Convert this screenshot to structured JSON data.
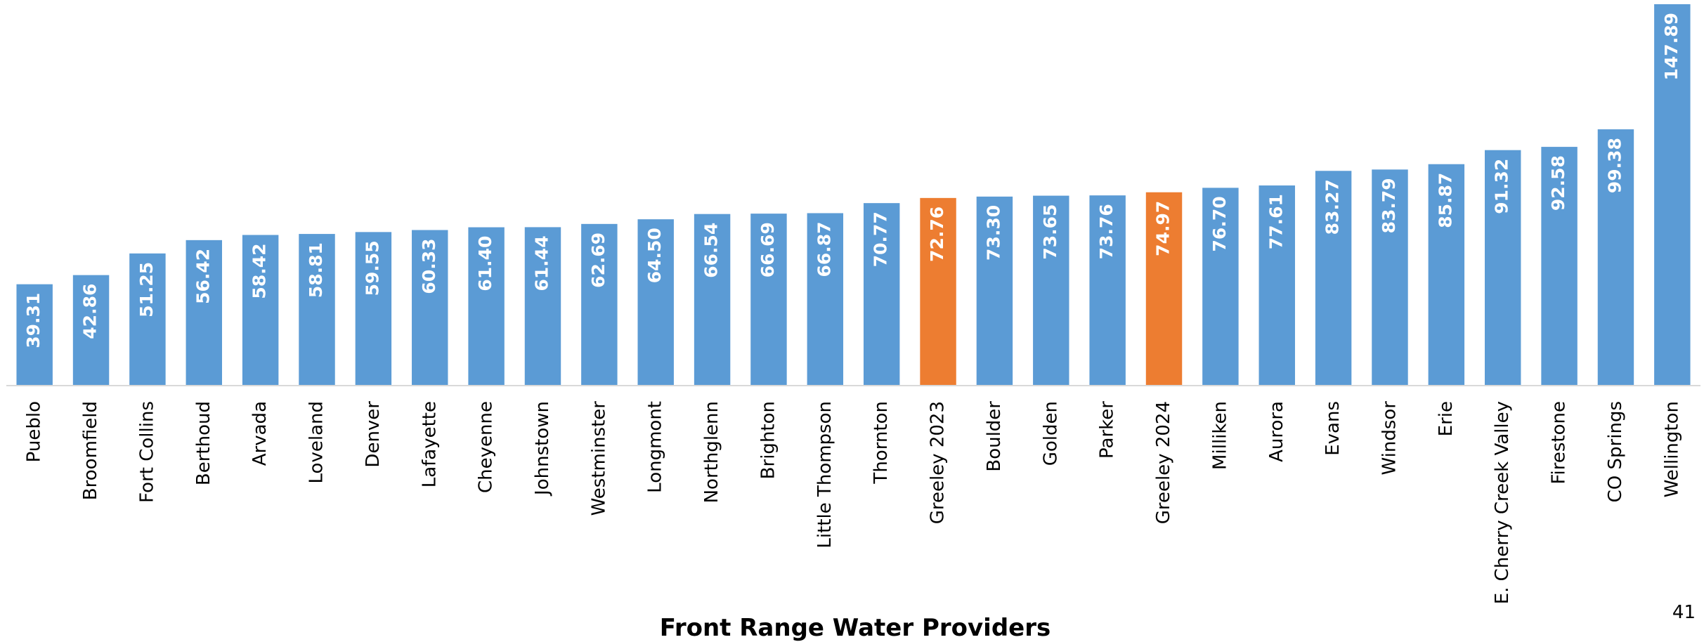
{
  "chart_data": {
    "type": "bar",
    "x_label": "Front Range Water Providers",
    "page_number": "41",
    "categories": [
      "Pueblo",
      "Broomfield",
      "Fort Collins",
      "Berthoud",
      "Arvada",
      "Loveland",
      "Denver",
      "Lafayette",
      "Cheyenne",
      "Johnstown",
      "Westminster",
      "Longmont",
      "Northglenn",
      "Brighton",
      "Little Thompson",
      "Thornton",
      "Greeley 2023",
      "Boulder",
      "Golden",
      "Parker",
      "Greeley 2024",
      "Milliken",
      "Aurora",
      "Evans",
      "Windsor",
      "Erie",
      "E. Cherry Creek Valley",
      "Firestone",
      "CO Springs",
      "Wellington"
    ],
    "values": [
      39.31,
      42.86,
      51.25,
      56.42,
      58.42,
      58.81,
      59.55,
      60.33,
      61.4,
      61.44,
      62.69,
      64.5,
      66.54,
      66.69,
      66.87,
      70.77,
      72.76,
      73.3,
      73.65,
      73.76,
      74.97,
      76.7,
      77.61,
      83.27,
      83.79,
      85.87,
      91.32,
      92.58,
      99.38,
      147.89
    ],
    "value_labels": [
      "39.31",
      "42.86",
      "51.25",
      "56.42",
      "58.42",
      "58.81",
      "59.55",
      "60.33",
      "61.40",
      "61.44",
      "62.69",
      "64.50",
      "66.54",
      "66.69",
      "66.87",
      "70.77",
      "72.76",
      "73.30",
      "73.65",
      "73.76",
      "74.97",
      "76.70",
      "77.61",
      "83.27",
      "83.79",
      "85.87",
      "91.32",
      "92.58",
      "99.38",
      "147.89"
    ],
    "colors": [
      "#5b9bd5",
      "#5b9bd5",
      "#5b9bd5",
      "#5b9bd5",
      "#5b9bd5",
      "#5b9bd5",
      "#5b9bd5",
      "#5b9bd5",
      "#5b9bd5",
      "#5b9bd5",
      "#5b9bd5",
      "#5b9bd5",
      "#5b9bd5",
      "#5b9bd5",
      "#5b9bd5",
      "#5b9bd5",
      "#ed7d31",
      "#5b9bd5",
      "#5b9bd5",
      "#5b9bd5",
      "#ed7d31",
      "#5b9bd5",
      "#5b9bd5",
      "#5b9bd5",
      "#5b9bd5",
      "#5b9bd5",
      "#5b9bd5",
      "#5b9bd5",
      "#5b9bd5",
      "#5b9bd5"
    ]
  }
}
